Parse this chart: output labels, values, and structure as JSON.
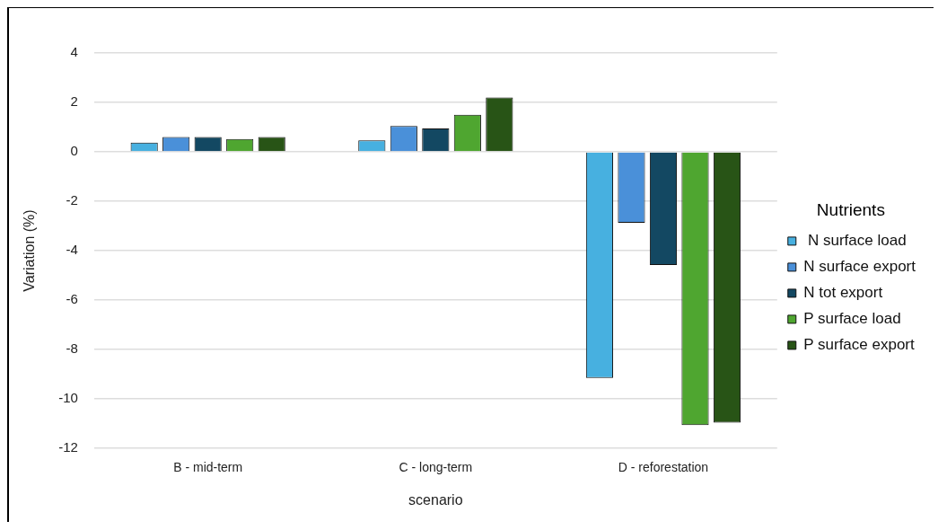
{
  "chart_data": {
    "type": "bar",
    "xlabel": "scenario",
    "ylabel": "Variation (%)",
    "legend_title": "Nutrients",
    "legend": "right",
    "categories": [
      "B - mid-term",
      "C - long-term",
      "D - reforestation"
    ],
    "series": [
      {
        "name": " N surface load",
        "color": "#47b0e0",
        "values": [
          0.37,
          0.46,
          -9.15
        ]
      },
      {
        "name": "N surface export",
        "color": "#4a90d9",
        "values": [
          0.6,
          1.05,
          -2.87
        ]
      },
      {
        "name": "N tot export",
        "color": "#134862",
        "values": [
          0.6,
          0.95,
          -4.58
        ]
      },
      {
        "name": "P surface load",
        "color": "#4fa630",
        "values": [
          0.52,
          1.5,
          -11.06
        ]
      },
      {
        "name": "P surface export",
        "color": "#285416",
        "values": [
          0.6,
          2.2,
          -10.96
        ]
      }
    ],
    "ylim": [
      -12,
      4
    ],
    "yticks": [
      -12,
      -10,
      -8,
      -6,
      -4,
      -2,
      0,
      2,
      4
    ],
    "grid": "y"
  }
}
